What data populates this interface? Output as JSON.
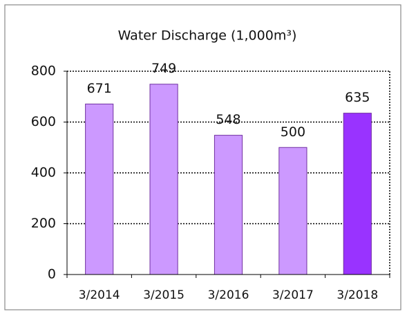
{
  "chart_data": {
    "type": "bar",
    "title": "Water Discharge (1,000m³)",
    "categories": [
      "3/2014",
      "3/2015",
      "3/2016",
      "3/2017",
      "3/2018"
    ],
    "values": [
      671,
      749,
      548,
      500,
      635
    ],
    "colors": [
      "#cc99ff",
      "#cc99ff",
      "#cc99ff",
      "#cc99ff",
      "#9933ff"
    ],
    "ylim": [
      0,
      800
    ],
    "yticks": [
      0,
      200,
      400,
      600,
      800
    ],
    "grid": true
  }
}
